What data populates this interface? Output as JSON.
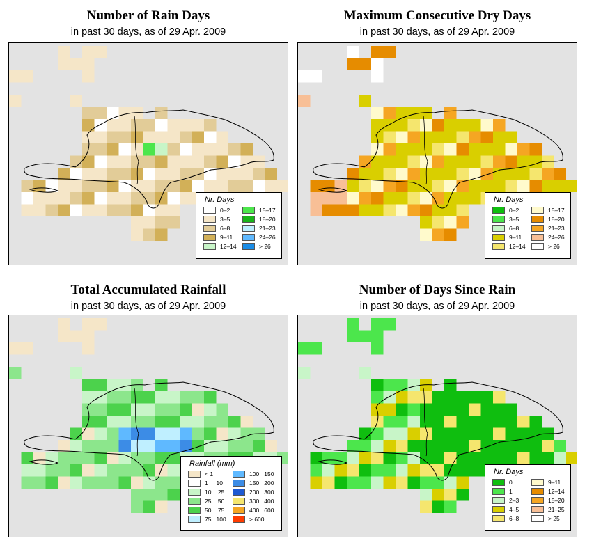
{
  "panels": [
    {
      "id": "rain-days",
      "title": "Number of Rain Days",
      "subtitle": "in past 30 days, as of  29 Apr. 2009",
      "legend": {
        "title": "Nr. Days",
        "items": [
          {
            "label": "0–2",
            "color": "#ffffff"
          },
          {
            "label": "3–5",
            "color": "#f5e6c8"
          },
          {
            "label": "6–8",
            "color": "#e2cc98"
          },
          {
            "label": "9–11",
            "color": "#d2b058"
          },
          {
            "label": "12–14",
            "color": "#c8f5c8"
          },
          {
            "label": "15–17",
            "color": "#4ce64c"
          },
          {
            "label": "18–20",
            "color": "#19b419"
          },
          {
            "label": "21–23",
            "color": "#bfefff"
          },
          {
            "label": "24–26",
            "color": "#5fb9ff"
          },
          {
            "label": "> 26",
            "color": "#1a8ce6"
          }
        ]
      }
    },
    {
      "id": "dry-days",
      "title": "Maximum Consecutive Dry Days",
      "subtitle": "in past 30 days, as of  29 Apr. 2009",
      "legend": {
        "title": "Nr. Days",
        "items": [
          {
            "label": "0–2",
            "color": "#0fbe0f"
          },
          {
            "label": "3–5",
            "color": "#4ce64c"
          },
          {
            "label": "6–8",
            "color": "#c8f5c8"
          },
          {
            "label": "9–11",
            "color": "#d9cf00"
          },
          {
            "label": "12–14",
            "color": "#f5e66e"
          },
          {
            "label": "15–17",
            "color": "#fffacc"
          },
          {
            "label": "18–20",
            "color": "#e68c00"
          },
          {
            "label": "21–23",
            "color": "#f5a623"
          },
          {
            "label": "24–26",
            "color": "#f8bf96"
          },
          {
            "label": "> 26",
            "color": "#ffffff"
          }
        ]
      }
    },
    {
      "id": "rainfall",
      "title": "Total Accumulated Rainfall",
      "subtitle": "in past 30 days, as of  29 Apr. 2009",
      "legend": {
        "title": "Rainfall (mm)",
        "items": [
          {
            "label": "< 1",
            "color": "#f5e6c8"
          },
          {
            "label": "1     10",
            "color": "#ffffff"
          },
          {
            "label": "10    25",
            "color": "#c8f5c8"
          },
          {
            "label": "25    50",
            "color": "#8ce68c"
          },
          {
            "label": "50    75",
            "color": "#4cd24c"
          },
          {
            "label": "75   100",
            "color": "#bfefff"
          },
          {
            "label": "100   150",
            "color": "#5fb9ff"
          },
          {
            "label": "150   200",
            "color": "#3c8ce6"
          },
          {
            "label": "200   300",
            "color": "#1e5ad2"
          },
          {
            "label": "300   400",
            "color": "#f5e66e"
          },
          {
            "label": "400   600",
            "color": "#f5a623"
          },
          {
            "label": "> 600",
            "color": "#ff3c00"
          }
        ]
      }
    },
    {
      "id": "days-since",
      "title": "Number of Days Since Rain",
      "subtitle": "in past 30 days, as of  29 Apr. 2009",
      "legend": {
        "title": "Nr. Days",
        "items": [
          {
            "label": "0",
            "color": "#0fbe0f"
          },
          {
            "label": "1",
            "color": "#4ce64c"
          },
          {
            "label": "2–3",
            "color": "#c8f5c8"
          },
          {
            "label": "4–5",
            "color": "#d9cf00"
          },
          {
            "label": "6–8",
            "color": "#f5e66e"
          },
          {
            "label": "9–11",
            "color": "#fffacc"
          },
          {
            "label": "12–14",
            "color": "#e68c00"
          },
          {
            "label": "15–20",
            "color": "#f5a623"
          },
          {
            "label": "21–25",
            "color": "#f8bf96"
          },
          {
            "label": "> 25",
            "color": "#ffffff"
          }
        ]
      }
    }
  ]
}
